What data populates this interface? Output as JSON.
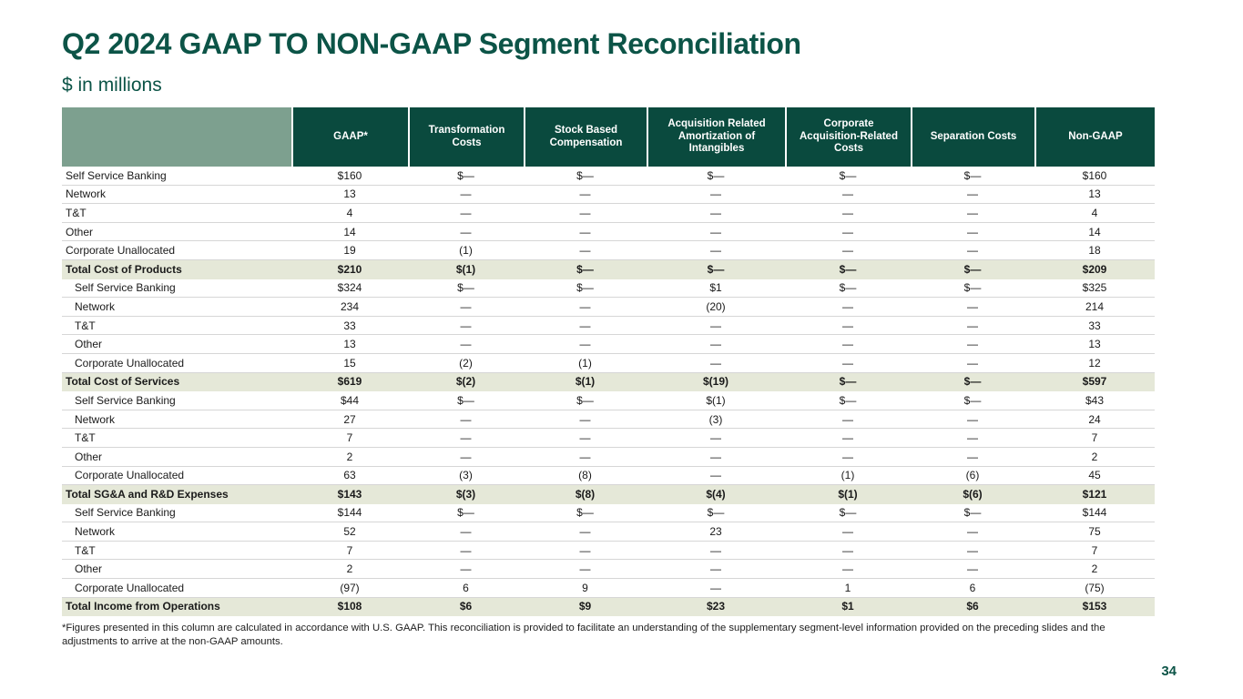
{
  "slide": {
    "title": "Q2 2024 GAAP TO NON-GAAP Segment Reconciliation",
    "subtitle": "$ in millions",
    "footnote": "*Figures presented in this column are calculated in accordance with U.S. GAAP. This reconciliation is provided to facilitate an understanding of the supplementary segment-level information provided  on the preceding slides and the adjustments to arrive at the non-GAAP amounts.",
    "page_number": "34"
  },
  "colors": {
    "title_green": "#0c5447",
    "header_dark_green": "#0a4a3e",
    "header_sage": "#7da08f",
    "total_row_bg": "#e5e8d8",
    "row_divider": "#d6d6d6",
    "body_text": "#1a1a1a"
  },
  "table": {
    "columns": [
      "GAAP*",
      "Transformation Costs",
      "Stock Based Compensation",
      "Acquisition Related Amortization of Intangibles",
      "Corporate Acquisition-Related Costs",
      "Separation Costs",
      "Non-GAAP"
    ],
    "rows": [
      {
        "label": "Self Service Banking",
        "indent": false,
        "total": false,
        "values": [
          "$160",
          "$—",
          "$—",
          "$—",
          "$—",
          "$—",
          "$160"
        ]
      },
      {
        "label": "Network",
        "indent": false,
        "total": false,
        "values": [
          "13",
          "—",
          "—",
          "—",
          "—",
          "—",
          "13"
        ]
      },
      {
        "label": "T&T",
        "indent": false,
        "total": false,
        "values": [
          "4",
          "—",
          "—",
          "—",
          "—",
          "—",
          "4"
        ]
      },
      {
        "label": "Other",
        "indent": false,
        "total": false,
        "values": [
          "14",
          "—",
          "—",
          "—",
          "—",
          "—",
          "14"
        ]
      },
      {
        "label": "Corporate Unallocated",
        "indent": false,
        "total": false,
        "values": [
          "19",
          "(1)",
          "—",
          "—",
          "—",
          "—",
          "18"
        ]
      },
      {
        "label": "Total Cost of Products",
        "indent": false,
        "total": true,
        "values": [
          "$210",
          "$(1)",
          "$—",
          "$—",
          "$—",
          "$—",
          "$209"
        ]
      },
      {
        "label": "Self Service Banking",
        "indent": true,
        "total": false,
        "values": [
          "$324",
          "$—",
          "$—",
          "$1",
          "$—",
          "$—",
          "$325"
        ]
      },
      {
        "label": "Network",
        "indent": true,
        "total": false,
        "values": [
          "234",
          "—",
          "—",
          "(20)",
          "—",
          "—",
          "214"
        ]
      },
      {
        "label": "T&T",
        "indent": true,
        "total": false,
        "values": [
          "33",
          "—",
          "—",
          "—",
          "—",
          "—",
          "33"
        ]
      },
      {
        "label": "Other",
        "indent": true,
        "total": false,
        "values": [
          "13",
          "—",
          "—",
          "—",
          "—",
          "—",
          "13"
        ]
      },
      {
        "label": "Corporate Unallocated",
        "indent": true,
        "total": false,
        "values": [
          "15",
          "(2)",
          "(1)",
          "—",
          "—",
          "—",
          "12"
        ]
      },
      {
        "label": "Total Cost of Services",
        "indent": false,
        "total": true,
        "values": [
          "$619",
          "$(2)",
          "$(1)",
          "$(19)",
          "$—",
          "$—",
          "$597"
        ]
      },
      {
        "label": "Self Service Banking",
        "indent": true,
        "total": false,
        "values": [
          "$44",
          "$—",
          "$—",
          "$(1)",
          "$—",
          "$—",
          "$43"
        ]
      },
      {
        "label": "Network",
        "indent": true,
        "total": false,
        "values": [
          "27",
          "—",
          "—",
          "(3)",
          "—",
          "—",
          "24"
        ]
      },
      {
        "label": "T&T",
        "indent": true,
        "total": false,
        "values": [
          "7",
          "—",
          "—",
          "—",
          "—",
          "—",
          "7"
        ]
      },
      {
        "label": "Other",
        "indent": true,
        "total": false,
        "values": [
          "2",
          "—",
          "—",
          "—",
          "—",
          "—",
          "2"
        ]
      },
      {
        "label": "Corporate Unallocated",
        "indent": true,
        "total": false,
        "values": [
          "63",
          "(3)",
          "(8)",
          "—",
          "(1)",
          "(6)",
          "45"
        ]
      },
      {
        "label": "Total SG&A and R&D Expenses",
        "indent": false,
        "total": true,
        "values": [
          "$143",
          "$(3)",
          "$(8)",
          "$(4)",
          "$(1)",
          "$(6)",
          "$121"
        ]
      },
      {
        "label": "Self Service Banking",
        "indent": true,
        "total": false,
        "values": [
          "$144",
          "$—",
          "$—",
          "$—",
          "$—",
          "$—",
          "$144"
        ]
      },
      {
        "label": "Network",
        "indent": true,
        "total": false,
        "values": [
          "52",
          "—",
          "—",
          "23",
          "—",
          "—",
          "75"
        ]
      },
      {
        "label": "T&T",
        "indent": true,
        "total": false,
        "values": [
          "7",
          "—",
          "—",
          "—",
          "—",
          "—",
          "7"
        ]
      },
      {
        "label": "Other",
        "indent": true,
        "total": false,
        "values": [
          "2",
          "—",
          "—",
          "—",
          "—",
          "—",
          "2"
        ]
      },
      {
        "label": "Corporate Unallocated",
        "indent": true,
        "total": false,
        "values": [
          "(97)",
          "6",
          "9",
          "—",
          "1",
          "6",
          "(75)"
        ]
      },
      {
        "label": "Total Income from Operations",
        "indent": false,
        "total": true,
        "values": [
          "$108",
          "$6",
          "$9",
          "$23",
          "$1",
          "$6",
          "$153"
        ]
      }
    ]
  }
}
